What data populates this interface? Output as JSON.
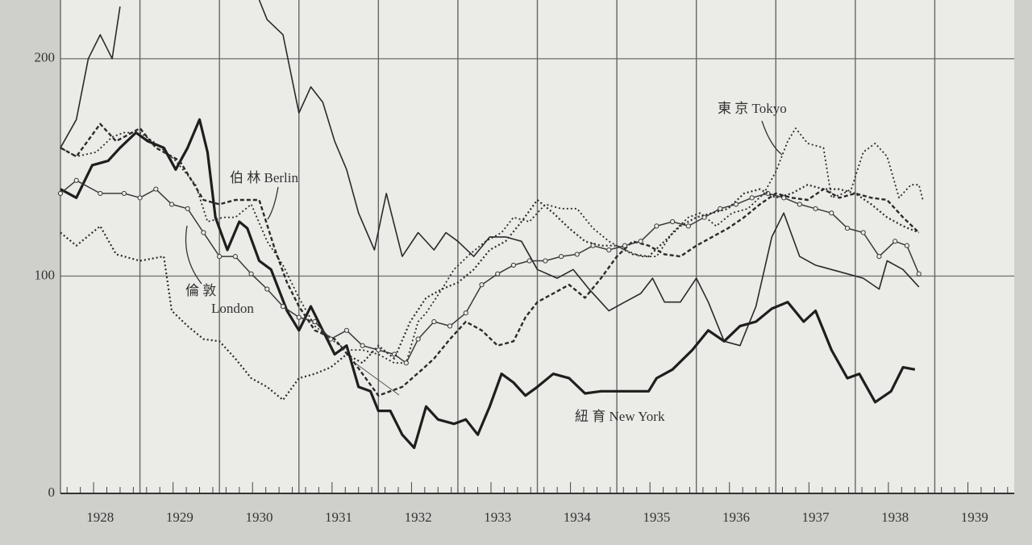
{
  "chart_data": {
    "type": "line",
    "xlim": [
      1928,
      1940
    ],
    "xticks": [
      {
        "value": 1928,
        "label": "1928"
      },
      {
        "value": 1929,
        "label": "1929"
      },
      {
        "value": 1930,
        "label": "1930"
      },
      {
        "value": 1931,
        "label": "1931"
      },
      {
        "value": 1932,
        "label": "1932"
      },
      {
        "value": 1933,
        "label": "1933"
      },
      {
        "value": 1934,
        "label": "1934"
      },
      {
        "value": 1935,
        "label": "1935"
      },
      {
        "value": 1936,
        "label": "1936"
      },
      {
        "value": 1937,
        "label": "1937"
      },
      {
        "value": 1938,
        "label": "1938"
      },
      {
        "value": 1939,
        "label": "1939"
      }
    ],
    "ylim": [
      0,
      227
    ],
    "yticks": [
      0,
      100,
      200
    ],
    "grid": true,
    "annotations": [
      "伯 林 Berlin",
      "倫 敦",
      "London",
      "東 京 Tokyo",
      "紐 育 New York"
    ],
    "series": [
      {
        "name": "New York",
        "color": "#1e1e1e",
        "style": "solid",
        "width": 3.2,
        "x": [
          1928.0,
          1928.2,
          1928.4,
          1928.6,
          1928.75,
          1928.95,
          1929.1,
          1929.3,
          1929.45,
          1929.6,
          1929.75,
          1929.85,
          1929.95,
          1930.1,
          1930.25,
          1930.35,
          1930.5,
          1930.65,
          1930.85,
          1931.0,
          1931.15,
          1931.3,
          1931.45,
          1931.6,
          1931.75,
          1931.9,
          1932.0,
          1932.15,
          1932.3,
          1932.45,
          1932.6,
          1932.75,
          1932.95,
          1933.1,
          1933.25,
          1933.4,
          1933.55,
          1933.7,
          1933.85,
          1934.0,
          1934.2,
          1934.4,
          1934.6,
          1934.8,
          1935.0,
          1935.2,
          1935.4,
          1935.5,
          1935.7,
          1935.95,
          1936.15,
          1936.35,
          1936.55,
          1936.75,
          1936.95,
          1937.15,
          1937.35,
          1937.5,
          1937.7,
          1937.9,
          1938.05,
          1938.25,
          1938.45,
          1938.6,
          1938.75
        ],
        "values": [
          140,
          136,
          151,
          153,
          159,
          166,
          162,
          159,
          149,
          159,
          172,
          157,
          127,
          112,
          125,
          122,
          107,
          103,
          84,
          75,
          86,
          75,
          64,
          68,
          49,
          47,
          38,
          38,
          27,
          21,
          40,
          34,
          32,
          34,
          27,
          40,
          55,
          51,
          45,
          49,
          55,
          53,
          46,
          47,
          47,
          47,
          47,
          53,
          57,
          66,
          75,
          70,
          77,
          79,
          85,
          88,
          79,
          84,
          66,
          53,
          55,
          42,
          47,
          58,
          57
        ]
      },
      {
        "color": "#2a2a2a",
        "style": "solid",
        "width": 1.6,
        "x": [
          1928.0,
          1928.2,
          1928.35,
          1928.5,
          1928.65,
          1928.75,
          1929.5,
          1930.5,
          1930.6,
          1930.8,
          1931.0,
          1931.15,
          1931.3,
          1931.45,
          1931.6,
          1931.75,
          1931.95,
          1932.1,
          1932.3,
          1932.5,
          1932.7,
          1932.85,
          1933.0,
          1933.2,
          1933.4,
          1933.6,
          1933.8,
          1934.0,
          1934.25,
          1934.45,
          1934.65,
          1934.9,
          1935.1,
          1935.3,
          1935.45,
          1935.6,
          1935.8,
          1936.0,
          1936.15,
          1936.35,
          1936.55,
          1936.75,
          1936.95,
          1937.1,
          1937.3,
          1937.5,
          1937.7,
          1937.9,
          1938.1,
          1938.3,
          1938.4,
          1938.6,
          1938.8
        ],
        "values": [
          159,
          172,
          200,
          211,
          200,
          224,
          null,
          227,
          218,
          211,
          175,
          187,
          180,
          162,
          149,
          129,
          112,
          138,
          109,
          120,
          112,
          120,
          116,
          109,
          118,
          118,
          116,
          103,
          99,
          103,
          94,
          84,
          88,
          92,
          99,
          88,
          88,
          99,
          88,
          70,
          68,
          86,
          118,
          129,
          109,
          105,
          103,
          101,
          99,
          94,
          107,
          103,
          95
        ]
      },
      {
        "name": "Tokyo",
        "color": "#2a2a2a",
        "style": "dotted",
        "width": 1.8,
        "x": [
          1928.0,
          1928.2,
          1928.45,
          1928.65,
          1928.8,
          1929.0,
          1929.2,
          1929.45,
          1929.7,
          1929.85,
          1930.05,
          1930.2,
          1930.4,
          1930.6,
          1930.8,
          1931.0,
          1931.2,
          1931.4,
          1931.6,
          1931.8,
          1932.0,
          1932.2,
          1932.35,
          1932.5,
          1932.6,
          1932.8,
          1932.95,
          1933.15,
          1933.35,
          1933.55,
          1933.7,
          1933.9,
          1934.1,
          1934.3,
          1934.5,
          1934.7,
          1934.9,
          1935.1,
          1935.3,
          1935.5,
          1935.7,
          1935.9,
          1936.05,
          1936.25,
          1936.45,
          1936.65,
          1936.85,
          1937.0,
          1937.15,
          1937.25,
          1937.4,
          1937.6,
          1937.7,
          1937.85,
          1937.95,
          1938.1,
          1938.25,
          1938.4,
          1938.55,
          1938.7,
          1938.8,
          1938.85
        ],
        "values": [
          159,
          155,
          157,
          164,
          166,
          166,
          161,
          153,
          142,
          125,
          127,
          127,
          133,
          116,
          105,
          90,
          77,
          71,
          66,
          66,
          64,
          60,
          60,
          79,
          83,
          94,
          103,
          110,
          116,
          120,
          127,
          125,
          133,
          131,
          131,
          122,
          116,
          112,
          109,
          109,
          120,
          127,
          129,
          123,
          129,
          131,
          138,
          148,
          162,
          168,
          161,
          159,
          136,
          138,
          140,
          157,
          161,
          155,
          136,
          142,
          142,
          135
        ]
      },
      {
        "name": "Berlin",
        "color": "#2a2a2a",
        "style": "dashed",
        "width": 2.4,
        "x": [
          1928.0,
          1928.2,
          1928.5,
          1928.7,
          1929.0,
          1929.2,
          1929.5,
          1929.8,
          1930.0,
          1930.2,
          1930.5,
          1930.7,
          1930.85,
          1931.0,
          1931.2,
          1931.45,
          1931.7,
          1932.0,
          1932.3,
          1932.55,
          1932.7,
          1932.9,
          1933.1,
          1933.3,
          1933.5,
          1933.7,
          1933.85,
          1934.0,
          1934.2,
          1934.4,
          1934.6,
          1934.8,
          1935.0,
          1935.2,
          1935.4,
          1935.6,
          1935.8,
          1936.0,
          1936.2,
          1936.4,
          1936.6,
          1936.8,
          1937.0,
          1937.2,
          1937.4,
          1937.6,
          1937.8,
          1938.0,
          1938.2,
          1938.4,
          1938.6,
          1938.8
        ],
        "values": [
          159,
          155,
          170,
          162,
          168,
          159,
          153,
          135,
          133,
          135,
          135,
          112,
          97,
          86,
          75,
          71,
          60,
          45,
          49,
          57,
          62,
          71,
          79,
          75,
          68,
          70,
          81,
          88,
          92,
          96,
          90,
          99,
          109,
          116,
          114,
          110,
          109,
          114,
          118,
          122,
          127,
          133,
          138,
          136,
          135,
          140,
          136,
          138,
          136,
          135,
          127,
          120
        ]
      },
      {
        "name": "London",
        "color": "#3a3a3a",
        "style": "circles",
        "width": 1.5,
        "x": [
          1928.0,
          1928.2,
          1928.5,
          1928.8,
          1929.0,
          1929.2,
          1929.4,
          1929.6,
          1929.8,
          1930.0,
          1930.2,
          1930.4,
          1930.6,
          1930.8,
          1931.0,
          1931.2,
          1931.4,
          1931.6,
          1931.8,
          1932.0,
          1932.2,
          1932.35,
          1932.5,
          1932.7,
          1932.9,
          1933.1,
          1933.3,
          1933.5,
          1933.7,
          1933.9,
          1934.1,
          1934.3,
          1934.5,
          1934.7,
          1934.9,
          1935.1,
          1935.3,
          1935.5,
          1935.7,
          1935.9,
          1936.1,
          1936.3,
          1936.5,
          1936.7,
          1936.9,
          1937.1,
          1937.3,
          1937.5,
          1937.7,
          1937.9,
          1938.1,
          1938.3,
          1938.5,
          1938.65,
          1938.8
        ],
        "values": [
          138,
          144,
          138,
          138,
          136,
          140,
          133,
          131,
          120,
          109,
          109,
          101,
          94,
          86,
          81,
          79,
          71,
          75,
          68,
          66,
          64,
          60,
          71,
          79,
          77,
          83,
          96,
          101,
          105,
          107,
          107,
          109,
          110,
          114,
          112,
          114,
          116,
          123,
          125,
          123,
          127,
          131,
          133,
          136,
          138,
          136,
          133,
          131,
          129,
          122,
          120,
          109,
          116,
          114,
          101
        ]
      },
      {
        "color": "#2a2a2a",
        "style": "dotted",
        "width": 2.2,
        "x": [
          1928.0,
          1928.2,
          1928.5,
          1928.7,
          1929.0,
          1929.3,
          1929.4,
          1929.6,
          1929.8,
          1930.0,
          1930.2,
          1930.4,
          1930.6,
          1930.8,
          1931.0,
          1931.2,
          1931.4,
          1931.6,
          1931.8,
          1932.0,
          1932.2,
          1932.4,
          1932.6,
          1932.8,
          1933.0,
          1933.2,
          1933.4,
          1933.6,
          1933.8,
          1934.0,
          1934.2,
          1934.4,
          1934.6,
          1934.8,
          1935.0,
          1935.2,
          1935.4,
          1935.6,
          1935.8,
          1936.0,
          1936.2,
          1936.4,
          1936.6,
          1936.8,
          1937.0,
          1937.2,
          1937.4,
          1937.6,
          1937.8,
          1938.0,
          1938.2,
          1938.4,
          1938.6,
          1938.8
        ],
        "values": [
          120,
          114,
          123,
          110,
          107,
          109,
          84,
          77,
          71,
          70,
          62,
          53,
          49,
          43,
          53,
          55,
          58,
          64,
          60,
          68,
          62,
          79,
          90,
          94,
          97,
          103,
          112,
          116,
          125,
          135,
          129,
          122,
          116,
          114,
          114,
          110,
          109,
          116,
          123,
          127,
          129,
          131,
          138,
          140,
          136,
          138,
          142,
          140,
          140,
          138,
          133,
          127,
          123,
          120
        ]
      }
    ]
  }
}
